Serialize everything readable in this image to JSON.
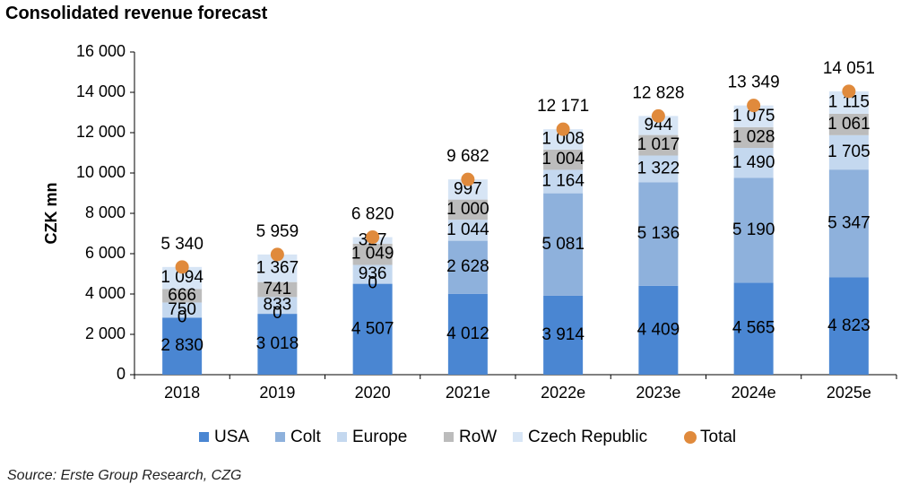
{
  "title": "Consolidated revenue forecast",
  "source": "Source: Erste Group Research, CZG",
  "chart_data": {
    "type": "bar",
    "stacked": true,
    "ylabel": "CZK mn",
    "ylim": [
      0,
      16000
    ],
    "yticks": [
      0,
      2000,
      4000,
      6000,
      8000,
      10000,
      12000,
      14000,
      16000
    ],
    "ytick_labels": [
      "0",
      "2 000",
      "4 000",
      "6 000",
      "8 000",
      "10 000",
      "12 000",
      "14 000",
      "16 000"
    ],
    "categories": [
      "2018",
      "2019",
      "2020",
      "2021e",
      "2022e",
      "2023e",
      "2024e",
      "2025e"
    ],
    "series": [
      {
        "name": "USA",
        "color": "#4a86d2",
        "values": [
          2830,
          3018,
          4507,
          4012,
          3914,
          4409,
          4565,
          4823
        ],
        "labels": [
          "2 830",
          "3 018",
          "4 507",
          "4 012",
          "3 914",
          "4 409",
          "4 565",
          "4 823"
        ]
      },
      {
        "name": "Colt",
        "color": "#8eb1dc",
        "values": [
          0,
          0,
          0,
          2628,
          5081,
          5136,
          5190,
          5347
        ],
        "labels": [
          "0",
          "0",
          "0",
          "2 628",
          "5 081",
          "5 136",
          "5 190",
          "5 347"
        ]
      },
      {
        "name": "Europe",
        "color": "#c4d8ef",
        "values": [
          750,
          833,
          936,
          1044,
          1164,
          1322,
          1490,
          1705
        ],
        "labels": [
          "750",
          "833",
          "936",
          "1 044",
          "1 164",
          "1 322",
          "1 490",
          "1 705"
        ]
      },
      {
        "name": "RoW",
        "color": "#bcbcbc",
        "values": [
          666,
          741,
          1049,
          1000,
          1004,
          1017,
          1028,
          1061
        ],
        "labels": [
          "666",
          "741",
          "1 049",
          "1 000",
          "1 004",
          "1 017",
          "1 028",
          "1 061"
        ]
      },
      {
        "name": "Czech Republic",
        "color": "#d7e5f5",
        "values": [
          1094,
          1367,
          327,
          997,
          1008,
          944,
          1075,
          1115
        ],
        "labels": [
          "1 094",
          "1 367",
          "327",
          "997",
          "1 008",
          "944",
          "1 075",
          "1 115"
        ]
      }
    ],
    "total": {
      "name": "Total",
      "color": "#e08a3c",
      "values": [
        5340,
        5959,
        6820,
        9682,
        12171,
        12828,
        13349,
        14051
      ],
      "labels": [
        "5 340",
        "5 959",
        "6 820",
        "9 682",
        "12 171",
        "12 828",
        "13 349",
        "14 051"
      ]
    },
    "legend_position": "bottom",
    "grid": false
  }
}
